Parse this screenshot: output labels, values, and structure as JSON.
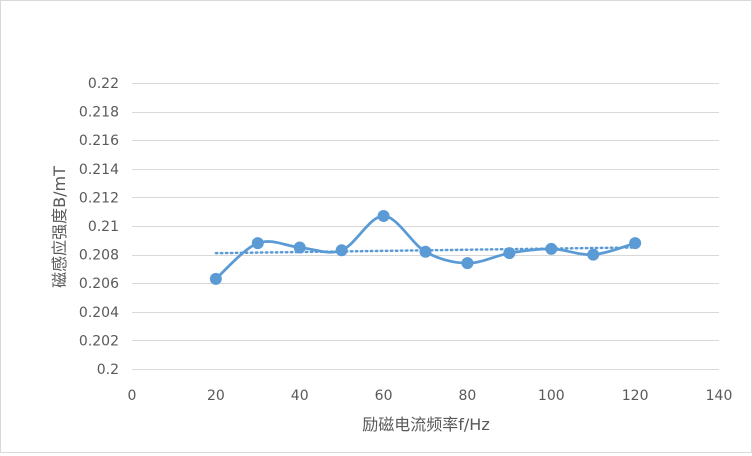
{
  "chart_data": {
    "type": "scatter",
    "style": "smooth-line-with-markers",
    "xlabel": "励磁电流频率f/Hz",
    "ylabel": "磁感应强度B/mT",
    "xlim": [
      0,
      140
    ],
    "ylim": [
      0.2,
      0.22
    ],
    "x_ticks": [
      0,
      20,
      40,
      60,
      80,
      100,
      120,
      140
    ],
    "x_tick_labels": [
      "0",
      "20",
      "40",
      "60",
      "80",
      "100",
      "120",
      "140"
    ],
    "y_ticks": [
      0.2,
      0.202,
      0.204,
      0.206,
      0.208,
      0.21,
      0.212,
      0.214,
      0.216,
      0.218,
      0.22
    ],
    "y_tick_labels": [
      "0.2",
      "0.202",
      "0.204",
      "0.206",
      "0.208",
      "0.21",
      "0.212",
      "0.214",
      "0.216",
      "0.218",
      "0.22"
    ],
    "grid": "horizontal",
    "legend": "none",
    "series": [
      {
        "x": [
          20,
          30,
          40,
          50,
          60,
          70,
          80,
          90,
          100,
          110,
          120
        ],
        "y": [
          0.2063,
          0.2088,
          0.2085,
          0.2083,
          0.2107,
          0.2082,
          0.2074,
          0.2081,
          0.2084,
          0.208,
          0.2088
        ],
        "color": "#5b9bd5"
      }
    ],
    "trendline": {
      "type": "linear",
      "style": "dotted",
      "color": "#5b9bd5",
      "x_range": [
        20,
        120
      ],
      "y_start": 0.2081,
      "y_end": 0.2085
    }
  }
}
